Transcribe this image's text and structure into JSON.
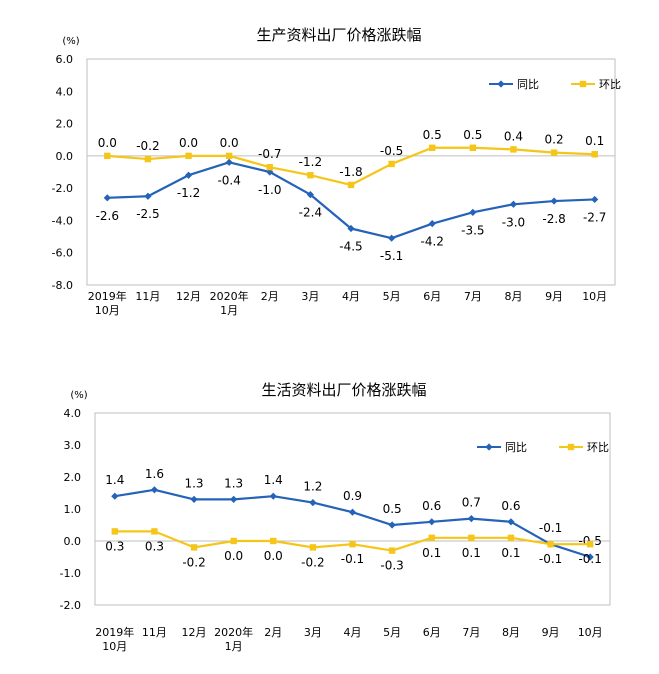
{
  "colors": {
    "yoy": "#2563B8",
    "mom": "#F5C518",
    "frame": "#BFBFBF",
    "zero": "#BFBFBF"
  },
  "chart_data": [
    {
      "type": "line",
      "title": "生产资料出厂价格涨跌幅",
      "unit": "(%)",
      "categories": [
        [
          "2019年",
          "10月"
        ],
        [
          "11月"
        ],
        [
          "12月"
        ],
        [
          "2020年",
          "1月"
        ],
        [
          "2月"
        ],
        [
          "3月"
        ],
        [
          "4月"
        ],
        [
          "5月"
        ],
        [
          "6月"
        ],
        [
          "7月"
        ],
        [
          "8月"
        ],
        [
          "9月"
        ],
        [
          "10月"
        ]
      ],
      "ylim": [
        -8.0,
        6.0
      ],
      "yticks": [
        "6.0",
        "4.0",
        "2.0",
        "0.0",
        "-2.0",
        "-4.0",
        "-6.0",
        "-8.0"
      ],
      "legend": "top-right",
      "series": [
        {
          "name": "同比",
          "key": "yoy",
          "marker": "diamond",
          "values": [
            -2.6,
            -2.5,
            -1.2,
            -0.4,
            -1.0,
            -2.4,
            -4.5,
            -5.1,
            -4.2,
            -3.5,
            -3.0,
            -2.8,
            -2.7
          ],
          "labels": [
            "-2.6",
            "-2.5",
            "-1.2",
            "-0.4",
            "-1.0",
            "-2.4",
            "-4.5",
            "-5.1",
            "-4.2",
            "-3.5",
            "-3.0",
            "-2.8",
            "-2.7"
          ]
        },
        {
          "name": "环比",
          "key": "mom",
          "marker": "square",
          "values": [
            0.0,
            -0.2,
            0.0,
            0.0,
            -0.7,
            -1.2,
            -1.8,
            -0.5,
            0.5,
            0.5,
            0.4,
            0.2,
            0.1
          ],
          "labels": [
            "0.0",
            "-0.2",
            "0.0",
            "0.0",
            "-0.7",
            "-1.2",
            "-1.8",
            "-0.5",
            "0.5",
            "0.5",
            "0.4",
            "0.2",
            "0.1"
          ]
        }
      ]
    },
    {
      "type": "line",
      "title": "生活资料出厂价格涨跌幅",
      "unit": "(%)",
      "categories": [
        [
          "2019年",
          "10月"
        ],
        [
          "11月"
        ],
        [
          "12月"
        ],
        [
          "2020年",
          "1月"
        ],
        [
          "2月"
        ],
        [
          "3月"
        ],
        [
          "4月"
        ],
        [
          "5月"
        ],
        [
          "6月"
        ],
        [
          "7月"
        ],
        [
          "8月"
        ],
        [
          "9月"
        ],
        [
          "10月"
        ]
      ],
      "ylim": [
        -2.0,
        4.0
      ],
      "yticks": [
        "4.0",
        "3.0",
        "2.0",
        "1.0",
        "0.0",
        "-1.0",
        "-2.0"
      ],
      "legend": "top-right",
      "series": [
        {
          "name": "同比",
          "key": "yoy",
          "marker": "diamond",
          "values": [
            1.4,
            1.6,
            1.3,
            1.3,
            1.4,
            1.2,
            0.9,
            0.5,
            0.6,
            0.7,
            0.6,
            -0.1,
            -0.5
          ],
          "labels": [
            "1.4",
            "1.6",
            "1.3",
            "1.3",
            "1.4",
            "1.2",
            "0.9",
            "0.5",
            "0.6",
            "0.7",
            "0.6",
            "-0.1",
            "-0.5"
          ]
        },
        {
          "name": "环比",
          "key": "mom",
          "marker": "square",
          "values": [
            0.3,
            0.3,
            -0.2,
            0.0,
            0.0,
            -0.2,
            -0.1,
            -0.3,
            0.1,
            0.1,
            0.1,
            -0.1,
            -0.1
          ],
          "labels": [
            "0.3",
            "0.3",
            "-0.2",
            "0.0",
            "0.0",
            "-0.2",
            "-0.1",
            "-0.3",
            "0.1",
            "0.1",
            "0.1",
            "-0.1",
            "-0.1"
          ]
        }
      ]
    }
  ]
}
